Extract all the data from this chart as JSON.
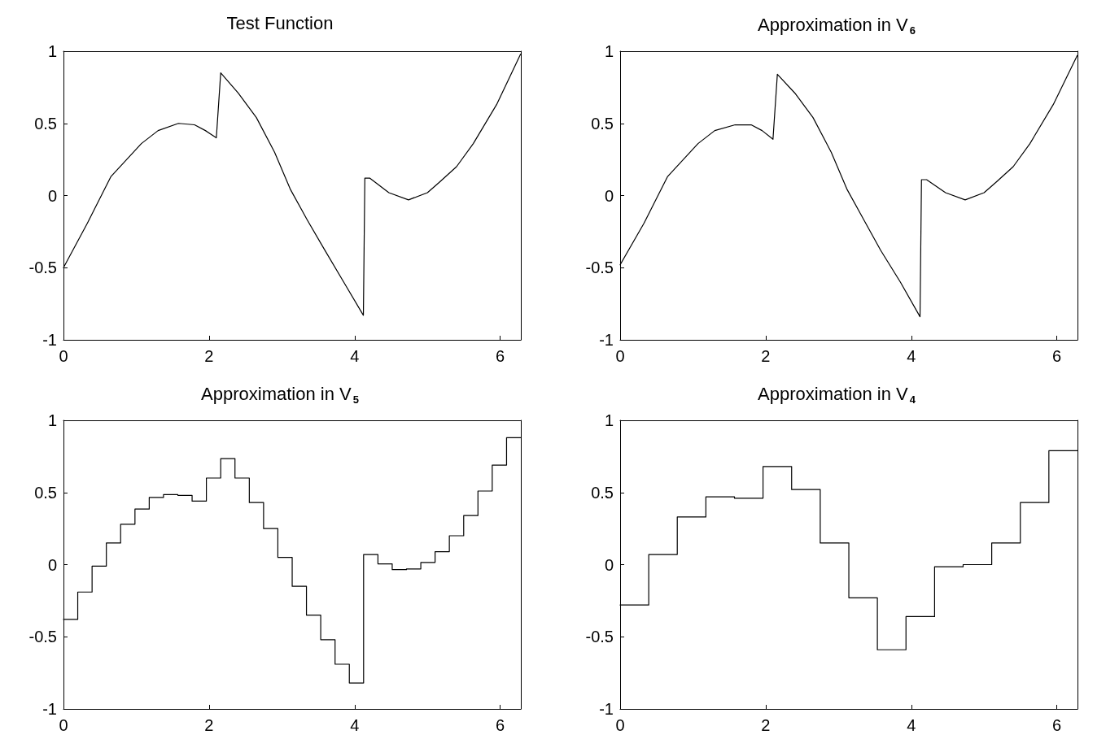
{
  "chart_data": [
    {
      "type": "line",
      "title": "Test Function",
      "color": "#000000",
      "marker": "none",
      "xlim": [
        0,
        6.2832
      ],
      "xticks": [
        0,
        2,
        4,
        6
      ],
      "ylim": [
        -1,
        1
      ],
      "yticks": [
        -1,
        -0.5,
        0,
        0.5,
        1
      ],
      "x": [
        0,
        0.33,
        0.65,
        1.07,
        1.3,
        1.58,
        1.8,
        1.95,
        2.1,
        2.1,
        2.16,
        2.4,
        2.65,
        2.9,
        3.12,
        3.35,
        3.58,
        3.85,
        4.12,
        4.14,
        4.21,
        4.47,
        4.74,
        5.0,
        5.16,
        5.4,
        5.63,
        5.95,
        6.28
      ],
      "values": [
        -0.5,
        -0.19,
        0.13,
        0.36,
        0.45,
        0.5,
        0.49,
        0.45,
        0.4,
        0.4,
        0.85,
        0.71,
        0.54,
        0.3,
        0.04,
        -0.17,
        -0.37,
        -0.6,
        -0.83,
        0.12,
        0.12,
        0.02,
        -0.03,
        0.02,
        0.09,
        0.2,
        0.36,
        0.63,
        0.98
      ]
    },
    {
      "type": "line",
      "title": "Approximation in V$_{6}$",
      "color": "#000000",
      "marker": "none",
      "xlim": [
        0,
        6.2832
      ],
      "xticks": [
        0,
        2,
        4,
        6
      ],
      "ylim": [
        -1,
        1
      ],
      "yticks": [
        -1,
        -0.5,
        0,
        0.5,
        1
      ],
      "x": [
        0,
        0.33,
        0.65,
        1.07,
        1.3,
        1.58,
        1.8,
        1.95,
        2.1,
        2.1,
        2.16,
        2.4,
        2.65,
        2.9,
        3.12,
        3.35,
        3.58,
        3.85,
        4.12,
        4.14,
        4.21,
        4.47,
        4.74,
        5.0,
        5.16,
        5.4,
        5.63,
        5.95,
        6.28
      ],
      "values": [
        -0.48,
        -0.19,
        0.13,
        0.36,
        0.45,
        0.49,
        0.49,
        0.45,
        0.39,
        0.39,
        0.84,
        0.71,
        0.54,
        0.3,
        0.04,
        -0.17,
        -0.38,
        -0.6,
        -0.84,
        0.11,
        0.11,
        0.02,
        -0.03,
        0.02,
        0.09,
        0.2,
        0.36,
        0.63,
        0.97
      ]
    },
    {
      "type": "step",
      "title": "Approximation in V$_{5}$",
      "color": "#000000",
      "marker": "none",
      "xlim": [
        0,
        6.2832
      ],
      "xticks": [
        0,
        2,
        4,
        6
      ],
      "ylim": [
        -1,
        1
      ],
      "yticks": [
        -1,
        -0.5,
        0,
        0.5,
        1
      ],
      "x": [
        0,
        0.196,
        0.393,
        0.589,
        0.785,
        0.982,
        1.178,
        1.374,
        1.571,
        1.767,
        1.963,
        2.16,
        2.356,
        2.553,
        2.749,
        2.945,
        3.142,
        3.338,
        3.534,
        3.731,
        3.927,
        4.123,
        4.32,
        4.516,
        4.712,
        4.909,
        5.105,
        5.301,
        5.498,
        5.694,
        5.89,
        6.087,
        6.283
      ],
      "values": [
        -0.38,
        -0.19,
        -0.01,
        0.15,
        0.28,
        0.385,
        0.465,
        0.485,
        0.48,
        0.44,
        0.6,
        0.735,
        0.6,
        0.43,
        0.25,
        0.05,
        -0.15,
        -0.35,
        -0.52,
        -0.69,
        -0.82,
        0.07,
        0.005,
        -0.035,
        -0.03,
        0.015,
        0.09,
        0.2,
        0.34,
        0.51,
        0.69,
        0.88,
        0.88
      ]
    },
    {
      "type": "step",
      "title": "Approximation in V$_{4}$",
      "color": "#000000",
      "marker": "none",
      "xlim": [
        0,
        6.2832
      ],
      "xticks": [
        0,
        2,
        4,
        6
      ],
      "ylim": [
        -1,
        1
      ],
      "yticks": [
        -1,
        -0.5,
        0,
        0.5,
        1
      ],
      "x": [
        0,
        0.393,
        0.785,
        1.178,
        1.571,
        1.963,
        2.356,
        2.749,
        3.142,
        3.534,
        3.927,
        4.32,
        4.712,
        5.105,
        5.498,
        5.89,
        6.283
      ],
      "values": [
        -0.28,
        0.07,
        0.33,
        0.47,
        0.46,
        0.68,
        0.52,
        0.15,
        -0.23,
        -0.59,
        -0.36,
        -0.015,
        0.0,
        0.15,
        0.43,
        0.79,
        0.79
      ]
    }
  ]
}
